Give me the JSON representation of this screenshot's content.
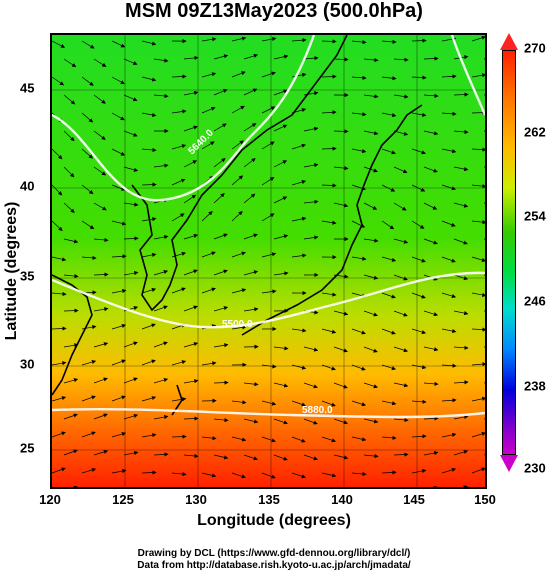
{
  "title": "MSM 09Z13May2023 (500.0hPa)",
  "xaxis": {
    "label": "Longitude (degrees)",
    "ticks": [
      "120",
      "125",
      "130",
      "135",
      "140",
      "145",
      "150"
    ]
  },
  "yaxis": {
    "label": "Latitude  (degrees)",
    "ticks": [
      "45",
      "40",
      "35",
      "30",
      "25"
    ]
  },
  "colorbar": {
    "ticks": [
      "270",
      "262",
      "254",
      "246",
      "238",
      "230"
    ]
  },
  "contour_labels": [
    "5640.0",
    "5880.0",
    "5500.0"
  ],
  "credits": {
    "line1": "Drawing by DCL (https://www.gfd-dennou.org/library/dcl/)",
    "line2": "Data from http://database.rish.kyoto-u.ac.jp/arch/jmadata/"
  },
  "colors": {
    "warm": "#ff4400",
    "mid": "#33dd00",
    "cool": "#0000dd"
  }
}
